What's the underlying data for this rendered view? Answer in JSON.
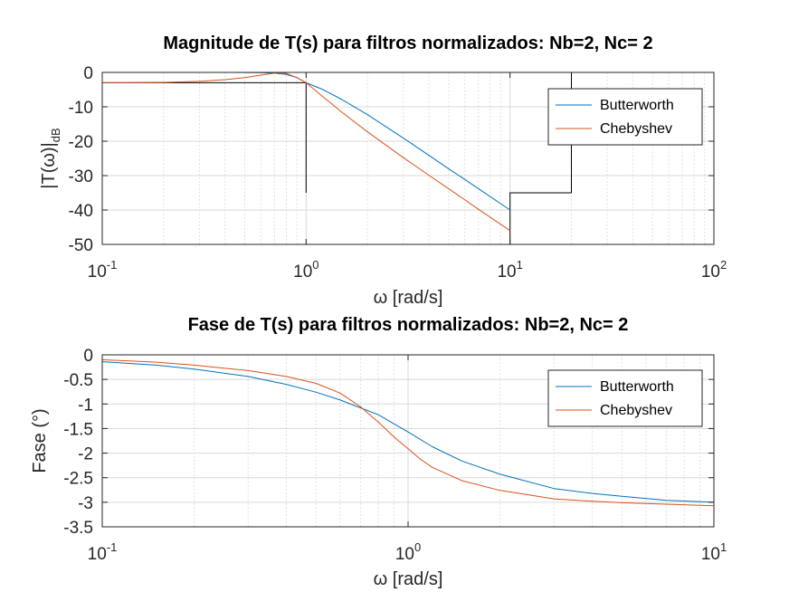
{
  "colors": {
    "butterworth": "#0072BD",
    "chebyshev": "#D95319",
    "grid": "#d9d9d9",
    "axis": "#262626",
    "annotation": "#000000"
  },
  "chart_data": [
    {
      "type": "line",
      "title": "Magnitude de T(s) para filtros normalizados: Nb=2, Nc= 2",
      "xlabel": "ω [rad/s]",
      "ylabel": "|T(ω)|",
      "ylabel_sub": "dB",
      "xscale": "log",
      "xlim": [
        0.1,
        100
      ],
      "ylim": [
        -50,
        0
      ],
      "grid": true,
      "legend": "top-right",
      "x_ticks": [
        {
          "base": "10",
          "exp": "-1",
          "value": 0.1
        },
        {
          "base": "10",
          "exp": "0",
          "value": 1
        },
        {
          "base": "10",
          "exp": "1",
          "value": 10
        },
        {
          "base": "10",
          "exp": "2",
          "value": 100
        }
      ],
      "y_ticks": [
        {
          "label": "0",
          "value": 0
        },
        {
          "label": "-10",
          "value": -10
        },
        {
          "label": "-20",
          "value": -20
        },
        {
          "label": "-30",
          "value": -30
        },
        {
          "label": "-40",
          "value": -40
        },
        {
          "label": "-50",
          "value": -50
        }
      ],
      "series": [
        {
          "name": "Butterworth",
          "x": [
            0.1,
            0.2,
            0.3,
            0.4,
            0.5,
            0.6,
            0.7,
            0.8,
            0.9,
            1.0,
            1.2,
            1.5,
            2,
            3,
            4,
            5,
            7,
            10
          ],
          "y": [
            0,
            0,
            0,
            -0.01,
            -0.03,
            -0.07,
            -0.2,
            -0.6,
            -1.5,
            -3.0,
            -4.9,
            -7.9,
            -12.3,
            -19.1,
            -24.1,
            -28.0,
            -33.8,
            -40.0
          ]
        },
        {
          "name": "Chebyshev",
          "x": [
            0.1,
            0.2,
            0.3,
            0.4,
            0.5,
            0.6,
            0.7,
            0.75,
            0.8,
            0.9,
            1.0,
            1.2,
            1.5,
            2,
            3,
            4,
            5,
            7,
            10
          ],
          "y": [
            -3.0,
            -2.9,
            -2.6,
            -2.1,
            -1.5,
            -0.8,
            -0.2,
            -0.05,
            -0.3,
            -1.5,
            -3.0,
            -6.9,
            -11.6,
            -17.3,
            -24.8,
            -29.9,
            -33.8,
            -39.8,
            -46.0
          ]
        }
      ],
      "annotations": [
        {
          "x": [
            0.1,
            1,
            1
          ],
          "y": [
            -3,
            -3,
            -35
          ]
        },
        {
          "x": [
            10,
            10,
            20,
            20
          ],
          "y": [
            -50,
            -35,
            -35,
            0
          ]
        }
      ]
    },
    {
      "type": "line",
      "title": "Fase de T(s) para filtros normalizados: Nb=2, Nc= 2",
      "xlabel": "ω [rad/s]",
      "ylabel": "Fase (°)",
      "xscale": "log",
      "xlim": [
        0.1,
        10
      ],
      "ylim": [
        -3.5,
        0
      ],
      "grid": true,
      "legend": "top-right",
      "x_ticks": [
        {
          "base": "10",
          "exp": "-1",
          "value": 0.1
        },
        {
          "base": "10",
          "exp": "0",
          "value": 1
        },
        {
          "base": "10",
          "exp": "1",
          "value": 10
        }
      ],
      "y_ticks": [
        {
          "label": "0",
          "value": 0
        },
        {
          "label": "-0.5",
          "value": -0.5
        },
        {
          "label": "-1",
          "value": -1
        },
        {
          "label": "-1.5",
          "value": -1.5
        },
        {
          "label": "-2",
          "value": -2
        },
        {
          "label": "-2.5",
          "value": -2.5
        },
        {
          "label": "-3",
          "value": -3
        },
        {
          "label": "-3.5",
          "value": -3.5
        }
      ],
      "series": [
        {
          "name": "Butterworth",
          "x": [
            0.1,
            0.15,
            0.2,
            0.3,
            0.4,
            0.5,
            0.6,
            0.7,
            0.8,
            1.0,
            1.2,
            1.5,
            2,
            3,
            4,
            5,
            7,
            10
          ],
          "y": [
            -0.14,
            -0.21,
            -0.29,
            -0.44,
            -0.6,
            -0.76,
            -0.92,
            -1.08,
            -1.22,
            -1.57,
            -1.87,
            -2.16,
            -2.43,
            -2.72,
            -2.82,
            -2.88,
            -2.96,
            -3.0
          ]
        },
        {
          "name": "Chebyshev",
          "x": [
            0.1,
            0.15,
            0.2,
            0.3,
            0.4,
            0.5,
            0.6,
            0.7,
            0.8,
            0.9,
            1.0,
            1.1,
            1.2,
            1.5,
            2,
            3,
            4,
            5,
            7,
            10
          ],
          "y": [
            -0.1,
            -0.15,
            -0.21,
            -0.32,
            -0.44,
            -0.58,
            -0.78,
            -1.06,
            -1.37,
            -1.67,
            -1.91,
            -2.13,
            -2.29,
            -2.56,
            -2.76,
            -2.93,
            -2.98,
            -3.01,
            -3.04,
            -3.07
          ]
        }
      ],
      "annotations": []
    }
  ]
}
